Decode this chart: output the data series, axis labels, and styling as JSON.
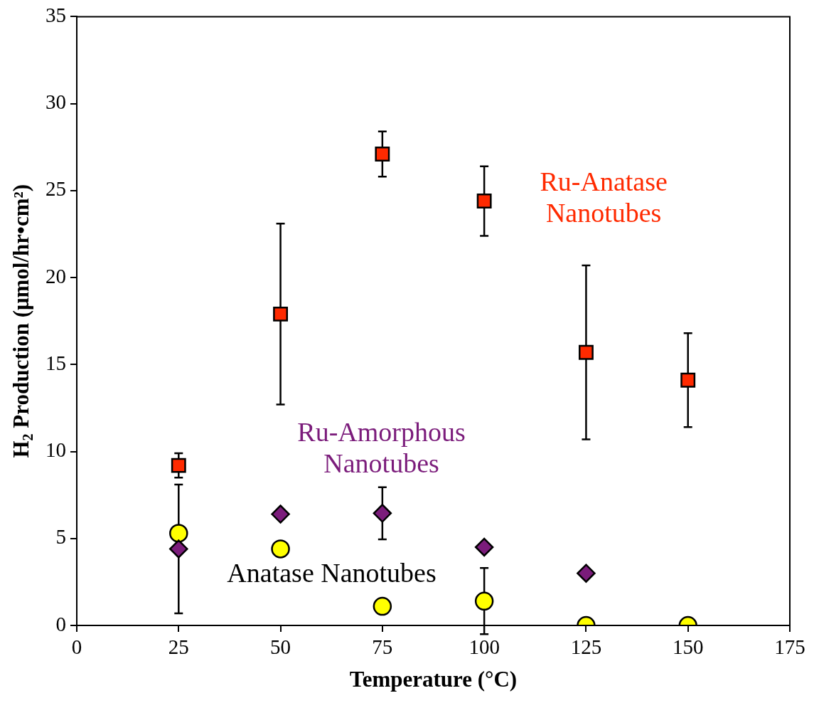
{
  "chart_data": {
    "type": "scatter",
    "xlabel": "Temperature (°C)",
    "ylabel": "H$_{2}$ Production (μmol/hr•cm²)",
    "xlim": [
      0,
      175
    ],
    "xticks": [
      0,
      25,
      50,
      75,
      100,
      125,
      150,
      175
    ],
    "ylim": [
      0,
      35
    ],
    "yticks": [
      0,
      5,
      10,
      15,
      20,
      25,
      30,
      35
    ],
    "grid": false,
    "legend": false,
    "series": [
      {
        "name": "Ru-Anatase\nNanotubes",
        "color": "#ff2a00",
        "marker": "square",
        "x": [
          25,
          50,
          75,
          100,
          125,
          150
        ],
        "values": [
          9.2,
          17.9,
          27.1,
          24.4,
          15.7,
          14.1
        ],
        "errors": [
          0.7,
          5.2,
          1.3,
          2.0,
          5.0,
          2.7
        ]
      },
      {
        "name": "Ru-Amorphous\nNanotubes",
        "color": "#7b1c7b",
        "marker": "diamond",
        "x": [
          25,
          50,
          75,
          100,
          125
        ],
        "values": [
          4.4,
          6.4,
          6.45,
          4.5,
          3.0
        ],
        "errors": [
          3.7,
          null,
          1.5,
          null,
          null
        ]
      },
      {
        "name": "Anatase Nanotubes",
        "color": "#ffff00",
        "marker": "circle",
        "x": [
          25,
          50,
          75,
          100,
          125,
          150
        ],
        "values": [
          5.3,
          4.4,
          1.1,
          1.4,
          0,
          0
        ],
        "errors": [
          null,
          null,
          null,
          1.9,
          null,
          null
        ]
      }
    ]
  }
}
